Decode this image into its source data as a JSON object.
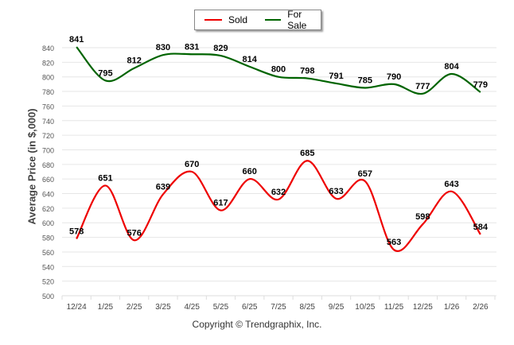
{
  "chart_data": {
    "type": "line",
    "ylabel": "Average Price (in $,000)",
    "xlabel": "",
    "footer": "Copyright © Trendgraphix, Inc.",
    "categories": [
      "12/24",
      "1/25",
      "2/25",
      "3/25",
      "4/25",
      "5/25",
      "6/25",
      "7/25",
      "8/25",
      "9/25",
      "10/25",
      "11/25",
      "12/25",
      "1/26",
      "2/26"
    ],
    "ylim": [
      500,
      840
    ],
    "yticks": [
      500,
      520,
      540,
      560,
      580,
      600,
      620,
      640,
      660,
      680,
      700,
      720,
      740,
      760,
      780,
      800,
      820,
      840
    ],
    "grid": true,
    "legend": "top-center",
    "series": [
      {
        "name": "Sold",
        "color": "#ee0000",
        "values": [
          578,
          651,
          576,
          639,
          670,
          617,
          660,
          632,
          685,
          633,
          657,
          563,
          598,
          643,
          584
        ]
      },
      {
        "name": "For Sale",
        "color": "#006400",
        "values": [
          841,
          795,
          812,
          830,
          831,
          829,
          814,
          800,
          798,
          791,
          785,
          790,
          777,
          804,
          779
        ]
      }
    ]
  }
}
